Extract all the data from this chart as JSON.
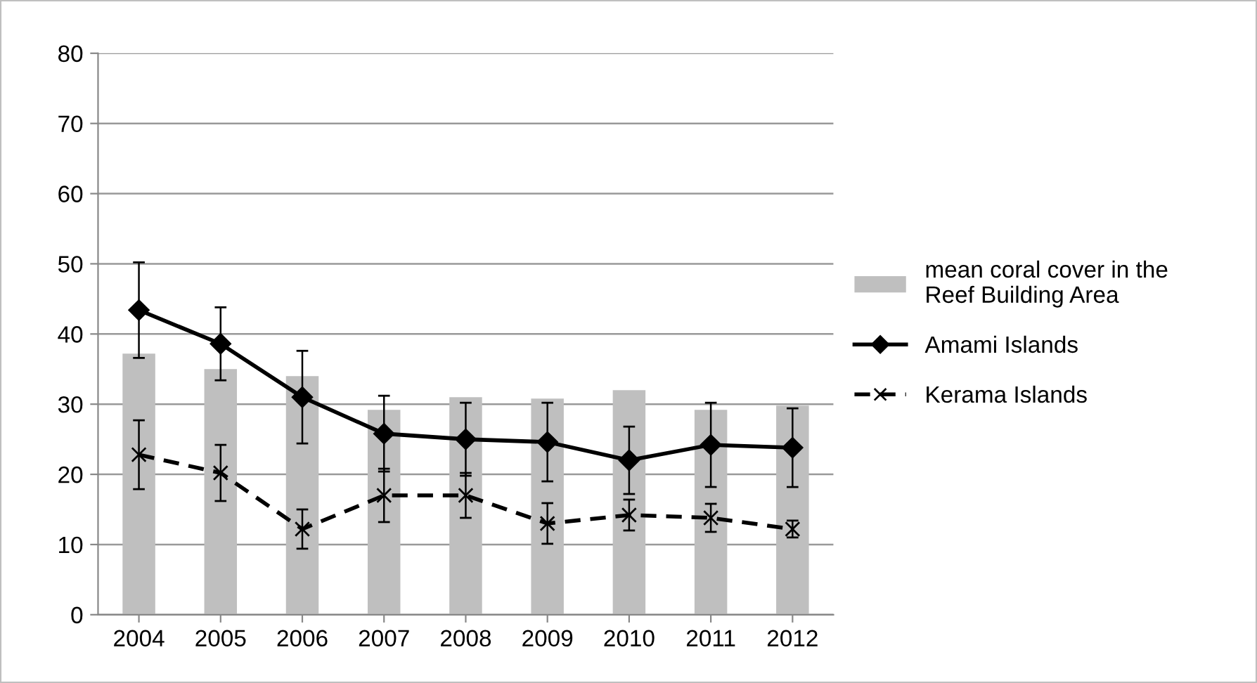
{
  "chart_data": {
    "type": "bar",
    "categories": [
      "2004",
      "2005",
      "2006",
      "2007",
      "2008",
      "2009",
      "2010",
      "2011",
      "2012"
    ],
    "series": [
      {
        "name": "mean coral cover in the\nReef Building Area",
        "color": "#bfbfbf",
        "values": [
          37.2,
          35,
          34,
          29.2,
          31,
          30.8,
          32,
          29.2,
          29.8
        ]
      },
      {
        "name": "Amami Islands",
        "type": "line",
        "color": "#000000",
        "marker": "diamond",
        "line_style": "solid",
        "values": [
          43.4,
          38.6,
          31,
          25.8,
          25,
          24.6,
          22,
          24.2,
          23.8
        ],
        "errors": [
          6.8,
          5.2,
          6.6,
          5.4,
          5.2,
          5.6,
          4.8,
          6,
          5.6
        ]
      },
      {
        "name": "Kerama Islands",
        "type": "line",
        "color": "#000000",
        "marker": "cross",
        "line_style": "dashed",
        "values": [
          22.8,
          20.2,
          12.2,
          17,
          17,
          13,
          14.2,
          13.8,
          12.2
        ],
        "errors": [
          4.9,
          4,
          2.8,
          3.8,
          3.2,
          2.9,
          2.2,
          2,
          1.2
        ]
      }
    ],
    "ylim": [
      0,
      80
    ],
    "yticks": [
      0,
      10,
      20,
      30,
      40,
      50,
      60,
      70,
      80
    ],
    "grid": "y",
    "legend": "right"
  }
}
